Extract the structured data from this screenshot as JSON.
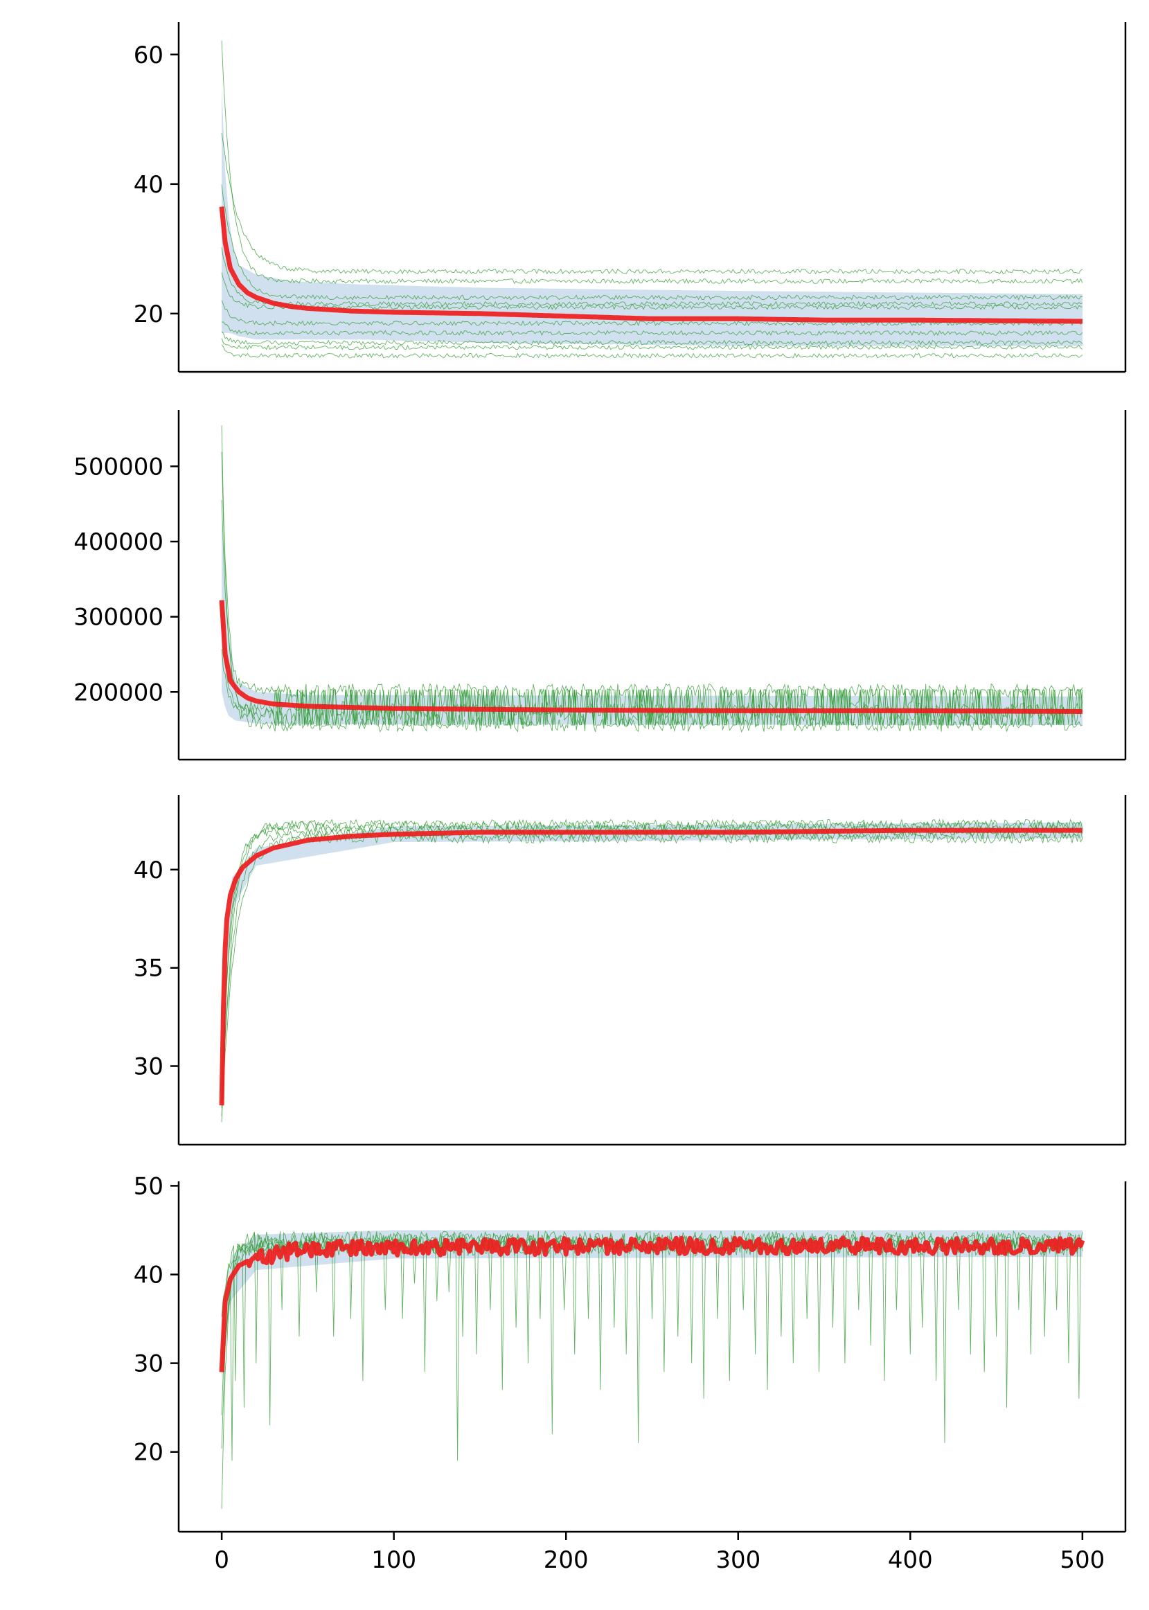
{
  "figure": {
    "colors": {
      "mean_line": "#ee1c1c",
      "run_lines": "#2e9a2e",
      "band": "#a9c7e2",
      "axes": "#000000"
    },
    "x_ticks": [
      0,
      100,
      200,
      300,
      400,
      500
    ],
    "x_tick_labels": [
      "0",
      "100",
      "200",
      "300",
      "400",
      "500"
    ]
  },
  "chart_data": [
    {
      "type": "line",
      "title": "",
      "xlabel": "",
      "ylabel": "",
      "xlim": [
        -25,
        525
      ],
      "ylim": [
        11,
        65
      ],
      "grid": false,
      "legend": "none",
      "y_ticks": [
        20,
        40,
        60
      ],
      "y_tick_labels": [
        "20",
        "40",
        "60"
      ],
      "mean_series": {
        "x": [
          0,
          2,
          5,
          10,
          15,
          20,
          30,
          40,
          50,
          75,
          100,
          150,
          200,
          250,
          300,
          350,
          400,
          450,
          500
        ],
        "values": [
          36.5,
          31,
          27,
          24.5,
          23.2,
          22.5,
          21.6,
          21.1,
          20.8,
          20.4,
          20.2,
          20.0,
          19.6,
          19.2,
          19.2,
          19.0,
          19.0,
          18.9,
          18.8
        ]
      },
      "band": {
        "x": [
          0,
          2,
          5,
          10,
          20,
          40,
          80,
          150,
          300,
          500
        ],
        "lower": [
          17,
          17,
          17,
          16.5,
          16,
          16,
          16,
          15.5,
          15,
          15
        ],
        "upper": [
          55,
          42,
          32,
          27.5,
          26,
          25,
          24.5,
          24,
          23.5,
          23
        ]
      },
      "runs": [
        {
          "start": 62,
          "end": 25,
          "k": 6
        },
        {
          "start": 48,
          "end": 26.5,
          "k": 10
        },
        {
          "start": 40,
          "end": 22.5,
          "k": 8
        },
        {
          "start": 30,
          "end": 21.5,
          "k": 6
        },
        {
          "start": 26,
          "end": 21,
          "k": 5
        },
        {
          "start": 22,
          "end": 18.5,
          "k": 5
        },
        {
          "start": 19,
          "end": 17,
          "k": 4
        },
        {
          "start": 17,
          "end": 15.5,
          "k": 4
        },
        {
          "start": 16,
          "end": 14.8,
          "k": 4
        },
        {
          "start": 15,
          "end": 13.5,
          "k": 4
        }
      ],
      "run_noise": 0.35
    },
    {
      "type": "line",
      "title": "",
      "xlabel": "",
      "ylabel": "",
      "xlim": [
        -25,
        525
      ],
      "ylim": [
        110000,
        575000
      ],
      "grid": false,
      "legend": "none",
      "y_ticks": [
        200000,
        300000,
        400000,
        500000
      ],
      "y_tick_labels": [
        "200000",
        "300000",
        "400000",
        "500000"
      ],
      "mean_series": {
        "x": [
          0,
          2,
          5,
          10,
          15,
          20,
          30,
          50,
          100,
          200,
          300,
          400,
          500
        ],
        "values": [
          322000,
          250000,
          215000,
          200000,
          192000,
          188000,
          184000,
          181000,
          178000,
          176000,
          175000,
          175000,
          174000
        ]
      },
      "band": {
        "x": [
          0,
          3,
          8,
          20,
          50,
          500
        ],
        "lower": [
          200000,
          170000,
          162000,
          158000,
          157000,
          156000
        ],
        "upper": [
          430000,
          300000,
          215000,
          200000,
          196000,
          194000
        ]
      },
      "runs": [
        {
          "start": 550000,
          "end": 202000,
          "k": 3
        },
        {
          "start": 525000,
          "end": 178000,
          "k": 3
        },
        {
          "start": 450000,
          "end": 156000,
          "k": 4
        },
        {
          "start": 320000,
          "end": 175000,
          "k": 3
        },
        {
          "start": 260000,
          "end": 170000,
          "k": 3
        }
      ],
      "run_noise": 9000
    },
    {
      "type": "line",
      "title": "",
      "xlabel": "",
      "ylabel": "",
      "xlim": [
        -25,
        525
      ],
      "ylim": [
        26.0,
        43.8
      ],
      "grid": false,
      "legend": "none",
      "y_ticks": [
        30,
        35,
        40
      ],
      "y_tick_labels": [
        "30",
        "35",
        "40"
      ],
      "mean_series": {
        "x": [
          0,
          1,
          2,
          3,
          5,
          8,
          12,
          20,
          30,
          50,
          75,
          100,
          150,
          200,
          300,
          400,
          500
        ],
        "values": [
          28,
          33,
          36,
          37.5,
          38.7,
          39.5,
          40.1,
          40.7,
          41.1,
          41.5,
          41.7,
          41.8,
          41.9,
          41.9,
          41.9,
          42.0,
          42.0
        ]
      },
      "band": {
        "x": [
          0,
          5,
          20,
          100,
          500
        ],
        "lower": [
          27,
          37.8,
          40.2,
          41.4,
          41.6
        ],
        "upper": [
          29,
          39.5,
          41.1,
          42.2,
          42.4
        ]
      },
      "runs": [
        {
          "start": 27,
          "end": 42.2,
          "k": 6
        },
        {
          "start": 28,
          "end": 41.8,
          "k": 7
        },
        {
          "start": 28.5,
          "end": 42.0,
          "k": 5
        },
        {
          "start": 27.5,
          "end": 41.6,
          "k": 8
        },
        {
          "start": 29,
          "end": 42.3,
          "k": 6
        }
      ],
      "run_noise": 0.25
    },
    {
      "type": "line",
      "title": "",
      "xlabel": "",
      "ylabel": "",
      "xlim": [
        -25,
        525
      ],
      "ylim": [
        11,
        50.5
      ],
      "grid": false,
      "legend": "none",
      "y_ticks": [
        20,
        30,
        40,
        50
      ],
      "y_tick_labels": [
        "20",
        "30",
        "40",
        "50"
      ],
      "mean_series": {
        "x": [
          0,
          2,
          5,
          10,
          20,
          40,
          80,
          150,
          300,
          500
        ],
        "values": [
          29,
          37,
          39.5,
          41,
          42,
          42.8,
          43.2,
          43.3,
          43.4,
          43.4
        ]
      },
      "band": {
        "x": [
          0,
          5,
          20,
          100,
          500
        ],
        "lower": [
          28,
          37,
          40.5,
          41.8,
          42
        ],
        "upper": [
          31,
          42,
          44.5,
          45,
          45
        ]
      },
      "runs": [
        {
          "start": 13,
          "end": 44.0,
          "k": 3
        },
        {
          "start": 20,
          "end": 43.5,
          "k": 3
        },
        {
          "start": 25,
          "end": 43.2,
          "k": 4
        },
        {
          "start": 30,
          "end": 43.8,
          "k": 3
        },
        {
          "start": 35,
          "end": 43.0,
          "k": 3
        }
      ],
      "run_noise": 0.9,
      "spikes": [
        [
          6,
          19
        ],
        [
          8,
          28
        ],
        [
          13,
          25
        ],
        [
          20,
          30
        ],
        [
          28,
          23
        ],
        [
          35,
          36
        ],
        [
          45,
          33
        ],
        [
          55,
          38
        ],
        [
          65,
          33
        ],
        [
          75,
          35
        ],
        [
          82,
          28
        ],
        [
          95,
          36
        ],
        [
          105,
          35
        ],
        [
          112,
          39
        ],
        [
          118,
          29
        ],
        [
          125,
          37
        ],
        [
          132,
          38
        ],
        [
          137,
          19
        ],
        [
          140,
          33
        ],
        [
          148,
          31
        ],
        [
          156,
          36
        ],
        [
          163,
          27
        ],
        [
          171,
          34
        ],
        [
          178,
          30
        ],
        [
          185,
          35
        ],
        [
          192,
          22
        ],
        [
          199,
          36
        ],
        [
          205,
          31
        ],
        [
          213,
          35
        ],
        [
          220,
          27
        ],
        [
          228,
          34
        ],
        [
          235,
          31
        ],
        [
          242,
          21
        ],
        [
          250,
          35
        ],
        [
          257,
          29
        ],
        [
          265,
          33
        ],
        [
          273,
          30
        ],
        [
          280,
          26
        ],
        [
          288,
          35
        ],
        [
          295,
          28
        ],
        [
          303,
          36
        ],
        [
          310,
          31
        ],
        [
          317,
          27
        ],
        [
          325,
          33
        ],
        [
          332,
          30
        ],
        [
          340,
          35
        ],
        [
          347,
          29
        ],
        [
          355,
          34
        ],
        [
          362,
          30
        ],
        [
          370,
          36
        ],
        [
          377,
          32
        ],
        [
          385,
          28
        ],
        [
          392,
          36
        ],
        [
          400,
          31
        ],
        [
          407,
          34
        ],
        [
          415,
          28
        ],
        [
          420,
          21
        ],
        [
          428,
          36
        ],
        [
          435,
          31
        ],
        [
          443,
          29
        ],
        [
          450,
          33
        ],
        [
          456,
          25
        ],
        [
          463,
          36
        ],
        [
          470,
          31
        ],
        [
          478,
          33
        ],
        [
          485,
          36
        ],
        [
          492,
          30
        ],
        [
          498,
          26
        ]
      ]
    }
  ]
}
